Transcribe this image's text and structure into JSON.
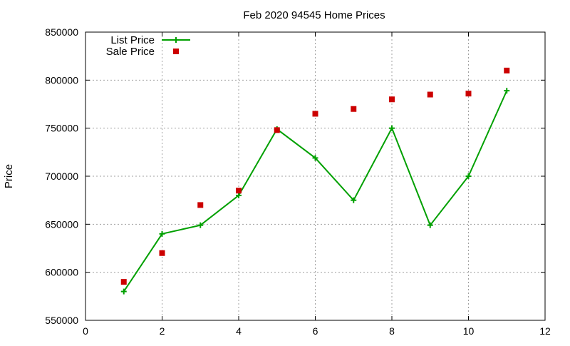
{
  "chart_data": {
    "type": "line",
    "title": "Feb 2020 94545 Home Prices",
    "xlabel": "",
    "ylabel": "Price",
    "xlim": [
      0,
      12
    ],
    "ylim": [
      550000,
      850000
    ],
    "x_ticks": [
      0,
      2,
      4,
      6,
      8,
      10,
      12
    ],
    "y_ticks": [
      550000,
      600000,
      650000,
      700000,
      750000,
      800000,
      850000
    ],
    "grid": true,
    "legend_position": "top-left",
    "series": [
      {
        "name": "List Price",
        "style": "line-points",
        "marker": "plus",
        "color": "#00a000",
        "x": [
          1,
          2,
          3,
          4,
          5,
          6,
          7,
          8,
          9,
          10,
          11
        ],
        "y": [
          580000,
          640000,
          649000,
          680000,
          749000,
          719000,
          675000,
          750000,
          649000,
          700000,
          789000
        ]
      },
      {
        "name": "Sale Price",
        "style": "points",
        "marker": "square",
        "color": "#cc0000",
        "x": [
          1,
          2,
          3,
          4,
          5,
          6,
          7,
          8,
          9,
          10,
          11
        ],
        "y": [
          590000,
          620000,
          670000,
          685000,
          748000,
          765000,
          770000,
          780000,
          785000,
          786000,
          810000
        ]
      }
    ]
  }
}
